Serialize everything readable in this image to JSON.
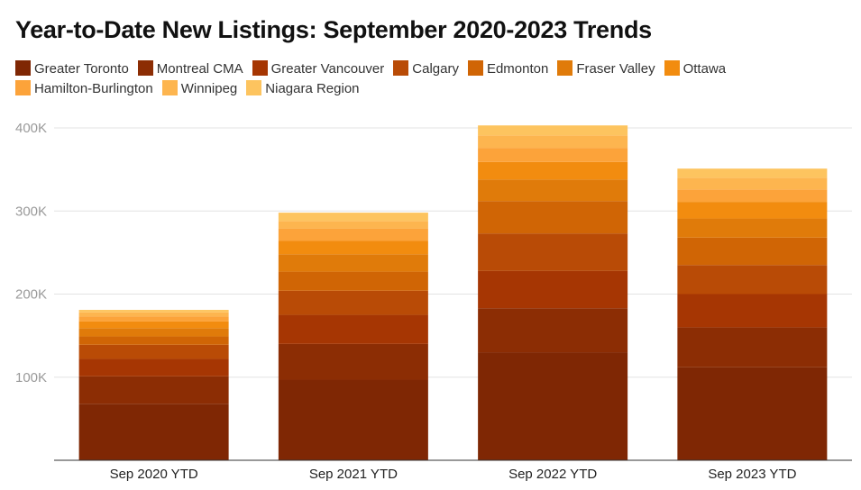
{
  "chart_data": {
    "type": "bar",
    "stacked": true,
    "title": "Year-to-Date New Listings: September 2020-2023 Trends",
    "xlabel": "",
    "ylabel": "",
    "ylim": [
      0,
      400000
    ],
    "yticks": [
      100000,
      200000,
      300000,
      400000
    ],
    "ytick_labels": [
      "100K",
      "200K",
      "300K",
      "400K"
    ],
    "grid": true,
    "legend_position": "top",
    "categories": [
      "Sep 2020 YTD",
      "Sep 2021 YTD",
      "Sep 2022 YTD",
      "Sep 2023 YTD"
    ],
    "series": [
      {
        "name": "Greater Toronto",
        "color": "#7f2704",
        "values": [
          68000,
          97000,
          130000,
          112000
        ]
      },
      {
        "name": "Montreal CMA",
        "color": "#8c2d04",
        "values": [
          33000,
          43000,
          53000,
          48000
        ]
      },
      {
        "name": "Greater Vancouver",
        "color": "#a63603",
        "values": [
          21000,
          35000,
          45000,
          40000
        ]
      },
      {
        "name": "Calgary",
        "color": "#b94b06",
        "values": [
          17000,
          29000,
          45000,
          35000
        ]
      },
      {
        "name": "Edmonton",
        "color": "#d06505",
        "values": [
          10000,
          23000,
          39000,
          33000
        ]
      },
      {
        "name": "Fraser Valley",
        "color": "#e07b0a",
        "values": [
          10000,
          21000,
          26000,
          23000
        ]
      },
      {
        "name": "Ottawa",
        "color": "#f28c0f",
        "values": [
          8000,
          16000,
          21000,
          20000
        ]
      },
      {
        "name": "Hamilton-Burlington",
        "color": "#fca33a",
        "values": [
          6000,
          15000,
          17000,
          15000
        ]
      },
      {
        "name": "Winnipeg",
        "color": "#fdb54f",
        "values": [
          5000,
          9000,
          15000,
          14000
        ]
      },
      {
        "name": "Niagara Region",
        "color": "#fdc45f",
        "values": [
          3000,
          10000,
          12000,
          11000
        ]
      }
    ]
  }
}
